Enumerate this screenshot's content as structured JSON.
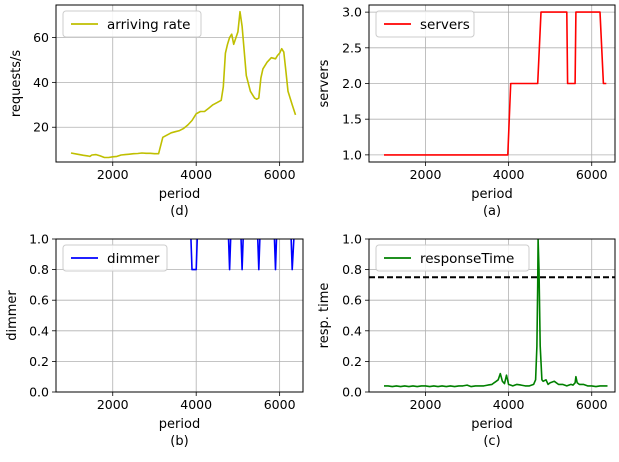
{
  "figure": {
    "panels": [
      {
        "id": "arrival",
        "caption": "(d)",
        "xlabel": "period",
        "ylabel": "requests/s",
        "xlim": [
          640,
          6560
        ],
        "ylim": [
          4.5,
          74.5
        ],
        "xticks": [
          "2000",
          "4000",
          "6000"
        ],
        "xtick_values": [
          2000,
          4000,
          6000
        ],
        "yticks": [
          "20",
          "40",
          "60"
        ],
        "ytick_values": [
          20,
          40,
          60
        ],
        "grid": true,
        "legend": "top-left",
        "hline": null
      },
      {
        "id": "servers",
        "caption": "(a)",
        "xlabel": "period",
        "ylabel": "servers",
        "xlim": [
          640,
          6560
        ],
        "ylim": [
          0.9,
          3.1
        ],
        "xticks": [
          "2000",
          "4000",
          "6000"
        ],
        "xtick_values": [
          2000,
          4000,
          6000
        ],
        "yticks": [
          "1.0",
          "1.5",
          "2.0",
          "2.5",
          "3.0"
        ],
        "ytick_values": [
          1.0,
          1.5,
          2.0,
          2.5,
          3.0
        ],
        "grid": true,
        "legend": "top-left",
        "hline": null
      },
      {
        "id": "dimmer",
        "caption": "(b)",
        "xlabel": "period",
        "ylabel": "dimmer",
        "xlim": [
          640,
          6560
        ],
        "ylim": [
          0,
          1
        ],
        "xticks": [
          "2000",
          "4000",
          "6000"
        ],
        "xtick_values": [
          2000,
          4000,
          6000
        ],
        "yticks": [
          "0.0",
          "0.2",
          "0.4",
          "0.6",
          "0.8",
          "1.0"
        ],
        "ytick_values": [
          0,
          0.2,
          0.4,
          0.6,
          0.8,
          1.0
        ],
        "grid": true,
        "legend": "top-left",
        "hline": null
      },
      {
        "id": "response",
        "caption": "(c)",
        "xlabel": "period",
        "ylabel": "resp. time",
        "xlim": [
          640,
          6560
        ],
        "ylim": [
          0,
          1
        ],
        "xticks": [
          "2000",
          "4000",
          "6000"
        ],
        "xtick_values": [
          2000,
          4000,
          6000
        ],
        "yticks": [
          "0.0",
          "0.2",
          "0.4",
          "0.6",
          "0.8",
          "1.0"
        ],
        "ytick_values": [
          0,
          0.2,
          0.4,
          0.6,
          0.8,
          1.0
        ],
        "grid": true,
        "legend": "top-left",
        "hline": {
          "y": 0.75,
          "color": "#000000",
          "style": "dashed"
        }
      }
    ]
  },
  "chart_data": [
    {
      "type": "line",
      "panel": "arrival",
      "title": "",
      "xlabel": "period",
      "ylabel": "requests/s",
      "caption": "(d)",
      "series": [
        {
          "name": "arriving rate",
          "color": "#bfbf00",
          "x": [
            1000,
            1150,
            1300,
            1400,
            1450,
            1500,
            1600,
            1700,
            1800,
            1900,
            2000,
            2100,
            2200,
            2300,
            2400,
            2500,
            2600,
            2700,
            2800,
            2900,
            3000,
            3100,
            3200,
            3300,
            3400,
            3500,
            3600,
            3700,
            3800,
            3900,
            4000,
            4100,
            4200,
            4300,
            4400,
            4500,
            4600,
            4650,
            4700,
            4750,
            4800,
            4850,
            4900,
            5000,
            5050,
            5100,
            5200,
            5300,
            5400,
            5450,
            5500,
            5550,
            5600,
            5700,
            5800,
            5900,
            5950,
            6000,
            6050,
            6100,
            6150,
            6200,
            6300,
            6380
          ],
          "y": [
            8.5,
            8,
            7.5,
            7.2,
            7,
            7.6,
            7.8,
            7.2,
            6.5,
            6.5,
            6.8,
            7,
            7.6,
            7.8,
            8,
            8.2,
            8.3,
            8.5,
            8.4,
            8.4,
            8.2,
            8.2,
            15.5,
            16.5,
            17.5,
            18,
            18.5,
            19.5,
            21,
            23,
            26,
            27,
            27,
            28.5,
            30,
            31,
            32,
            38,
            53,
            57,
            60,
            61.5,
            57,
            62.5,
            71.5,
            65,
            43,
            36,
            33,
            32.5,
            33,
            42,
            46,
            49,
            51,
            50.5,
            52,
            53,
            55,
            53.5,
            45,
            36,
            30,
            25.5
          ]
        }
      ]
    },
    {
      "type": "line",
      "panel": "servers",
      "title": "",
      "xlabel": "period",
      "ylabel": "servers",
      "caption": "(a)",
      "series": [
        {
          "name": "servers",
          "color": "#ff0000",
          "x": [
            1000,
            3980,
            4050,
            4700,
            4780,
            5400,
            5420,
            5600,
            5620,
            6200,
            6280,
            6350
          ],
          "y": [
            1,
            1,
            2,
            2,
            3,
            3,
            2,
            2,
            3,
            3,
            2,
            2
          ]
        }
      ]
    },
    {
      "type": "line",
      "panel": "dimmer",
      "title": "",
      "xlabel": "period",
      "ylabel": "dimmer",
      "caption": "(b)",
      "series": [
        {
          "name": "dimmer",
          "color": "#0000ff",
          "x": [
            3850,
            3900,
            4000,
            4050,
            4750,
            4800,
            4850,
            5050,
            5100,
            5150,
            5450,
            5500,
            5550,
            5850,
            5900,
            5950,
            6250,
            6300,
            6380
          ],
          "y": [
            1.2,
            0.8,
            0.8,
            1.2,
            1.2,
            0.8,
            1.2,
            1.2,
            0.8,
            1.2,
            1.2,
            0.8,
            1.2,
            1.2,
            0.8,
            1.2,
            1.2,
            0.8,
            1.2
          ]
        }
      ]
    },
    {
      "type": "line",
      "panel": "response",
      "title": "",
      "xlabel": "period",
      "ylabel": "resp. time",
      "caption": "(c)",
      "series": [
        {
          "name": "responseTime",
          "color": "#008000",
          "x": [
            1000,
            1100,
            1200,
            1300,
            1400,
            1500,
            1600,
            1700,
            1800,
            1900,
            2000,
            2100,
            2200,
            2300,
            2400,
            2500,
            2600,
            2700,
            2800,
            2900,
            3000,
            3100,
            3200,
            3300,
            3400,
            3500,
            3600,
            3650,
            3700,
            3750,
            3800,
            3850,
            3900,
            3950,
            4000,
            4100,
            4200,
            4300,
            4400,
            4500,
            4600,
            4650,
            4680,
            4700,
            4710,
            4730,
            4760,
            4800,
            4830,
            4900,
            4950,
            5000,
            5100,
            5200,
            5300,
            5400,
            5500,
            5550,
            5600,
            5620,
            5650,
            5700,
            5800,
            5900,
            6000,
            6100,
            6200,
            6300,
            6380
          ],
          "y": [
            0.04,
            0.04,
            0.035,
            0.04,
            0.035,
            0.04,
            0.035,
            0.04,
            0.035,
            0.04,
            0.04,
            0.035,
            0.04,
            0.035,
            0.04,
            0.035,
            0.04,
            0.035,
            0.04,
            0.04,
            0.045,
            0.035,
            0.04,
            0.04,
            0.04,
            0.045,
            0.05,
            0.06,
            0.07,
            0.08,
            0.12,
            0.07,
            0.055,
            0.11,
            0.05,
            0.04,
            0.05,
            0.045,
            0.04,
            0.04,
            0.05,
            0.08,
            0.3,
            0.7,
            1.0,
            0.8,
            0.3,
            0.08,
            0.07,
            0.08,
            0.05,
            0.06,
            0.07,
            0.05,
            0.05,
            0.04,
            0.05,
            0.045,
            0.06,
            0.1,
            0.06,
            0.05,
            0.05,
            0.04,
            0.04,
            0.035,
            0.04,
            0.04,
            0.04
          ]
        }
      ]
    }
  ]
}
